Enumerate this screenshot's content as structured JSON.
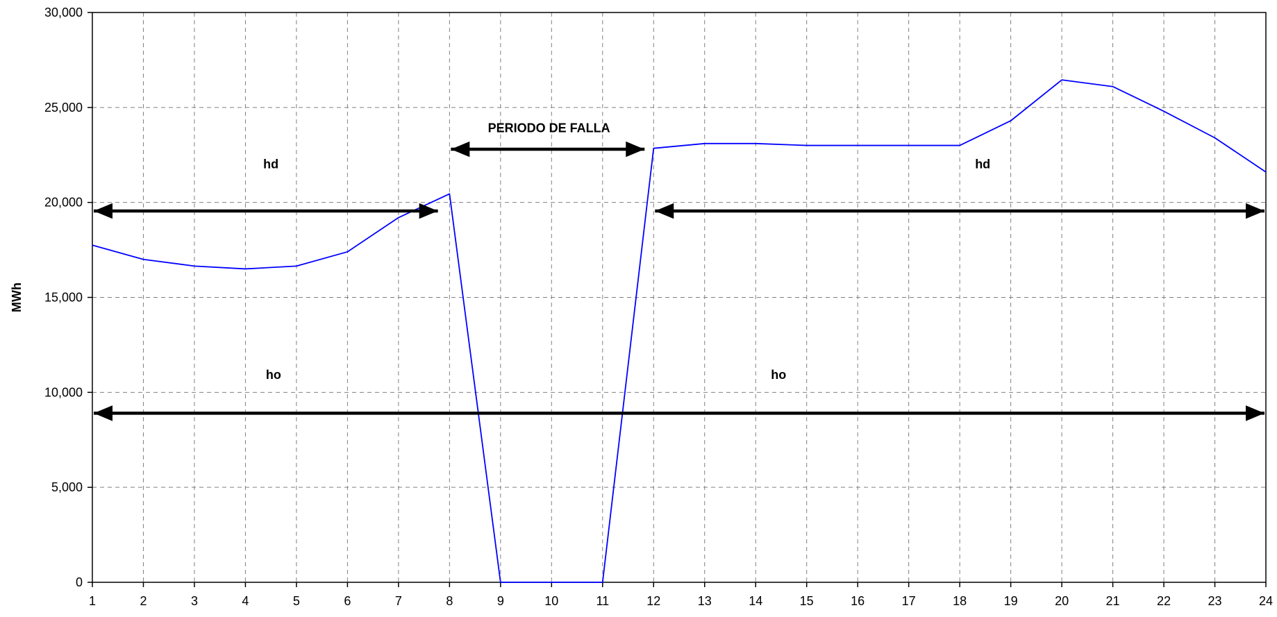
{
  "chart_data": {
    "type": "line",
    "title": "",
    "xlabel": "",
    "ylabel": "MWh",
    "x": [
      1,
      2,
      3,
      4,
      5,
      6,
      7,
      8,
      9,
      10,
      11,
      12,
      13,
      14,
      15,
      16,
      17,
      18,
      19,
      20,
      21,
      22,
      23,
      24
    ],
    "xlim": [
      1,
      24
    ],
    "ylim": [
      0,
      30000
    ],
    "y_ticks": [
      0,
      5000,
      10000,
      15000,
      20000,
      25000,
      30000
    ],
    "y_tick_labels": [
      "0",
      "5,000",
      "10,000",
      "15,000",
      "20,000",
      "25,000",
      "30,000"
    ],
    "x_tick_labels": [
      "1",
      "2",
      "3",
      "4",
      "5",
      "6",
      "7",
      "8",
      "9",
      "10",
      "11",
      "12",
      "13",
      "14",
      "15",
      "16",
      "17",
      "18",
      "19",
      "20",
      "21",
      "22",
      "23",
      "24"
    ],
    "grid": true,
    "legend": "none",
    "series": [
      {
        "color": "#0000ff",
        "values": [
          17750,
          17000,
          16650,
          16500,
          16650,
          17400,
          19200,
          20450,
          0,
          0,
          0,
          22850,
          23100,
          23100,
          23000,
          23000,
          23000,
          23000,
          24300,
          26450,
          26100,
          24800,
          23400,
          21600
        ]
      }
    ],
    "annotations": [
      {
        "id": "hd-left",
        "text": "hd",
        "type": "label",
        "x": 4.5,
        "y": 21800
      },
      {
        "id": "hd-right",
        "text": "hd",
        "type": "label",
        "x": 18.45,
        "y": 21800
      },
      {
        "id": "ho-left",
        "text": "ho",
        "type": "label",
        "x": 4.55,
        "y": 10700
      },
      {
        "id": "ho-right",
        "text": "ho",
        "type": "label",
        "x": 14.45,
        "y": 10700
      },
      {
        "id": "falla",
        "text": "PERIODO DE FALLA",
        "type": "label",
        "x": 9.95,
        "y": 23700
      },
      {
        "id": "arrow-hd-left",
        "type": "double-arrow",
        "x1": 1,
        "x2": 7.8,
        "y": 19550
      },
      {
        "id": "arrow-hd-right",
        "type": "double-arrow",
        "x1": 12,
        "x2": 24,
        "y": 19550
      },
      {
        "id": "arrow-falla",
        "type": "double-arrow",
        "x1": 8,
        "x2": 11.85,
        "y": 22800
      },
      {
        "id": "arrow-ho",
        "type": "double-arrow",
        "x1": 1,
        "x2": 24,
        "y": 8900
      }
    ],
    "colors": {
      "line": "#0000ff",
      "arrow": "#000000",
      "grid": "#808080"
    }
  }
}
